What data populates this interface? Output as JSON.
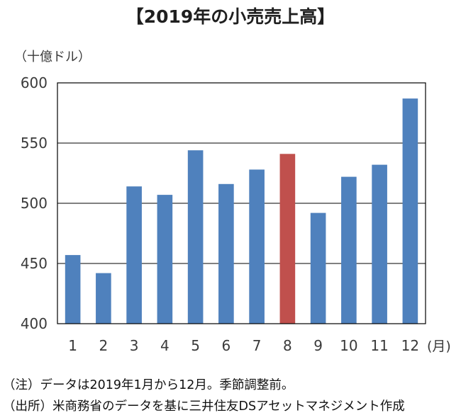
{
  "title": "【2019年の小売売上高】",
  "unit_label": "（十億ドル）",
  "colors": {
    "bar": "#4f81bd",
    "highlight": "#c0504d",
    "grid": "#000000"
  },
  "chart_data": {
    "type": "bar",
    "categories": [
      "1",
      "2",
      "3",
      "4",
      "5",
      "6",
      "7",
      "8",
      "9",
      "10",
      "11",
      "12"
    ],
    "x_unit_label": "(月)",
    "values": [
      457,
      442,
      514,
      507,
      544,
      516,
      528,
      541,
      492,
      522,
      532,
      587
    ],
    "highlight_category": "8",
    "ylim": [
      400,
      600
    ],
    "yticks": [
      400,
      450,
      500,
      550,
      600
    ],
    "grid": true,
    "legend": "none"
  },
  "notes": {
    "line1": "（注）データは2019年1月から12月。季節調整前。",
    "line2": "（出所）米商務省のデータを基に三井住友DSアセットマネジメント作成"
  }
}
